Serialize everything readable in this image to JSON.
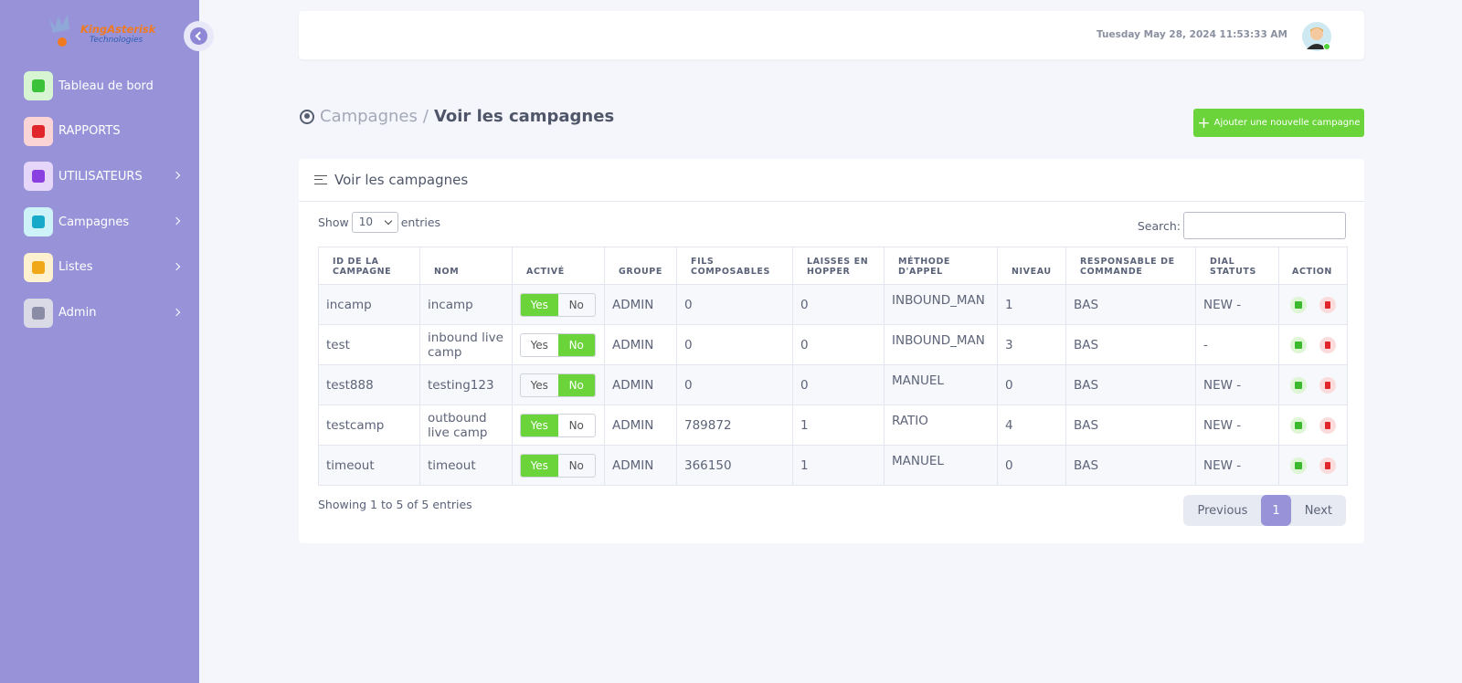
{
  "sidebar": {
    "logo": {
      "name": "KingAsterisk",
      "sub": "Technologies"
    },
    "menu": [
      {
        "label": "Tableau de bord",
        "icon_bg": "#d7f5d3",
        "icon_fg": "#3cc13b",
        "has_submenu": false
      },
      {
        "label": "RAPPORTS",
        "icon_bg": "#fbd5d5",
        "icon_fg": "#e0262b",
        "has_submenu": false
      },
      {
        "label": "UTILISATEURS",
        "icon_bg": "#e6d7fa",
        "icon_fg": "#8a3fe0",
        "has_submenu": true
      },
      {
        "label": "Campagnes",
        "icon_bg": "#cdf2f8",
        "icon_fg": "#17a9c9",
        "has_submenu": true
      },
      {
        "label": "Listes",
        "icon_bg": "#fdf1cf",
        "icon_fg": "#f0a818",
        "has_submenu": true
      },
      {
        "label": "Admin",
        "icon_bg": "#d9dae6",
        "icon_fg": "#8a8ca6",
        "has_submenu": true
      }
    ]
  },
  "header": {
    "datetime": "Tuesday May 28, 2024 11:53:33 AM"
  },
  "breadcrumb": {
    "parent": "Campagnes",
    "separator": "/",
    "current": "Voir les campagnes"
  },
  "add_button": "Ajouter une nouvelle campagne",
  "card": {
    "title": "Voir les campagnes",
    "show_label": "Show",
    "page_size": "10",
    "entries_label": "entries",
    "search_label": "Search:",
    "table": {
      "columns": [
        "ID DE LA CAMPAGNE",
        "NOM",
        "ACTIVÉ",
        "GROUPE",
        "FILS COMPOSABLES",
        "LAISSES EN HOPPER",
        "MÉTHODE D'APPEL",
        "NIVEAU",
        "RESPONSABLE DE COMMANDE",
        "DIAL STATUTS",
        "ACTION"
      ],
      "toggle_labels": [
        "Yes",
        "No"
      ],
      "rows": [
        {
          "id": "incamp",
          "name": "incamp",
          "active": true,
          "group": "ADMIN",
          "dialable": "0",
          "hopper": "0",
          "method": "INBOUND_MAN",
          "level": "1",
          "owner": "BAS",
          "status": "NEW -"
        },
        {
          "id": "test",
          "name": "inbound live camp",
          "active": false,
          "group": "ADMIN",
          "dialable": "0",
          "hopper": "0",
          "method": "INBOUND_MAN",
          "level": "3",
          "owner": "BAS",
          "status": "-"
        },
        {
          "id": "test888",
          "name": "testing123",
          "active": false,
          "group": "ADMIN",
          "dialable": "0",
          "hopper": "0",
          "method": "MANUEL",
          "level": "0",
          "owner": "BAS",
          "status": "NEW -"
        },
        {
          "id": "testcamp",
          "name": "outbound live camp",
          "active": true,
          "group": "ADMIN",
          "dialable": "789872",
          "hopper": "1",
          "method": "RATIO",
          "level": "4",
          "owner": "BAS",
          "status": "NEW -"
        },
        {
          "id": "timeout",
          "name": "timeout",
          "active": true,
          "group": "ADMIN",
          "dialable": "366150",
          "hopper": "1",
          "method": "MANUEL",
          "level": "0",
          "owner": "BAS",
          "status": "NEW -"
        }
      ]
    },
    "info": "Showing 1 to 5 of 5 entries",
    "pagination": {
      "previous": "Previous",
      "page": "1",
      "next": "Next"
    }
  }
}
